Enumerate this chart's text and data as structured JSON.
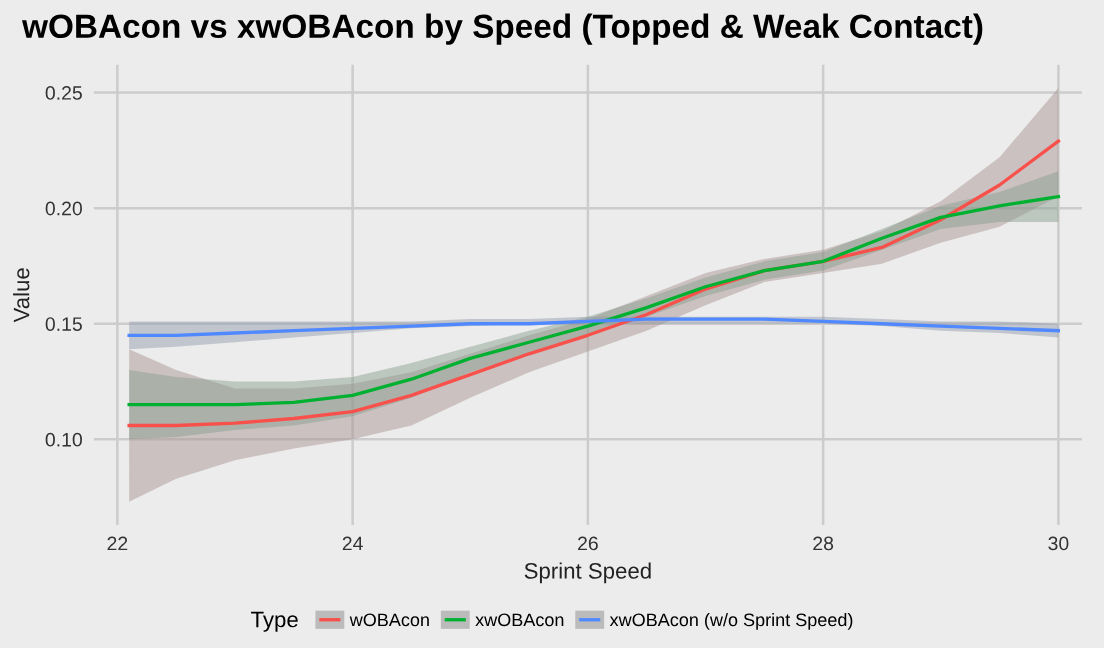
{
  "chart_data": {
    "type": "line",
    "title": "wOBAcon vs xwOBAcon by Speed (Topped & Weak Contact)",
    "xlabel": "Sprint Speed",
    "ylabel": "Value",
    "legend_title": "Type",
    "x": [
      22.1,
      22.5,
      23,
      23.5,
      24,
      24.5,
      25,
      25.5,
      26,
      26.5,
      27,
      27.5,
      28,
      28.5,
      29,
      29.5,
      30
    ],
    "series": [
      {
        "name": "wOBAcon",
        "color": "#f8504a",
        "values": [
          0.106,
          0.106,
          0.107,
          0.109,
          0.112,
          0.119,
          0.128,
          0.137,
          0.145,
          0.154,
          0.165,
          0.173,
          0.177,
          0.183,
          0.195,
          0.21,
          0.229
        ],
        "lower": [
          0.073,
          0.083,
          0.091,
          0.096,
          0.1,
          0.106,
          0.118,
          0.129,
          0.138,
          0.147,
          0.158,
          0.168,
          0.172,
          0.176,
          0.185,
          0.192,
          0.205
        ],
        "upper": [
          0.139,
          0.13,
          0.122,
          0.122,
          0.124,
          0.129,
          0.137,
          0.145,
          0.152,
          0.162,
          0.172,
          0.178,
          0.182,
          0.19,
          0.203,
          0.222,
          0.252
        ]
      },
      {
        "name": "xwOBAcon",
        "color": "#00b030",
        "values": [
          0.115,
          0.115,
          0.115,
          0.116,
          0.119,
          0.126,
          0.135,
          0.142,
          0.149,
          0.157,
          0.166,
          0.173,
          0.177,
          0.187,
          0.196,
          0.201,
          0.205
        ],
        "lower": [
          0.1,
          0.101,
          0.104,
          0.106,
          0.11,
          0.118,
          0.129,
          0.137,
          0.145,
          0.153,
          0.162,
          0.169,
          0.173,
          0.182,
          0.191,
          0.194,
          0.194
        ],
        "upper": [
          0.13,
          0.127,
          0.125,
          0.125,
          0.127,
          0.133,
          0.14,
          0.147,
          0.153,
          0.161,
          0.17,
          0.177,
          0.181,
          0.191,
          0.201,
          0.207,
          0.216
        ]
      },
      {
        "name": "xwOBAcon (w/o Sprint Speed)",
        "color": "#5088ff",
        "values": [
          0.145,
          0.145,
          0.146,
          0.147,
          0.148,
          0.149,
          0.15,
          0.15,
          0.151,
          0.152,
          0.152,
          0.152,
          0.151,
          0.15,
          0.149,
          0.148,
          0.147
        ],
        "lower": [
          0.139,
          0.14,
          0.142,
          0.144,
          0.146,
          0.148,
          0.149,
          0.15,
          0.15,
          0.15,
          0.15,
          0.15,
          0.15,
          0.149,
          0.147,
          0.146,
          0.144
        ],
        "upper": [
          0.151,
          0.151,
          0.151,
          0.151,
          0.151,
          0.151,
          0.152,
          0.152,
          0.153,
          0.153,
          0.153,
          0.153,
          0.153,
          0.152,
          0.151,
          0.151,
          0.15
        ]
      }
    ],
    "xlim": [
      21.8,
      30.2
    ],
    "ylim": [
      0.063,
      0.262
    ],
    "xticks": [
      22,
      24,
      26,
      28,
      30
    ],
    "yticks": [
      {
        "value": 0.1,
        "label": "0.10"
      },
      {
        "value": 0.15,
        "label": "0.15"
      },
      {
        "value": 0.2,
        "label": "0.20"
      },
      {
        "value": 0.25,
        "label": "0.25"
      }
    ],
    "grid": true,
    "legend": "bottom"
  }
}
